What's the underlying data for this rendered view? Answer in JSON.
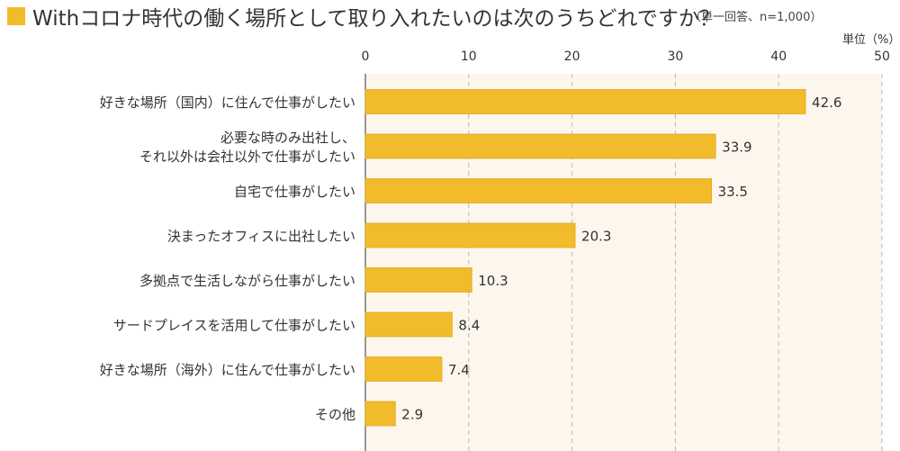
{
  "chart_data": {
    "type": "bar",
    "orientation": "horizontal",
    "title": "Withコロナ時代の働く場所として取り入れたいのは次のうちどれですか？",
    "subtitle": "（単一回答、n=1,000）",
    "unit_label": "単位（%）",
    "categories": [
      [
        "好きな場所（国内）に住んで仕事がしたい"
      ],
      [
        "必要な時のみ出社し、",
        "それ以外は会社以外で仕事がしたい"
      ],
      [
        "自宅で仕事がしたい"
      ],
      [
        "決まったオフィスに出社したい"
      ],
      [
        "多拠点で生活しながら仕事がしたい"
      ],
      [
        "サードプレイスを活用して仕事がしたい"
      ],
      [
        "好きな場所（海外）に住んで仕事がしたい"
      ],
      [
        "その他"
      ]
    ],
    "values": [
      42.6,
      33.9,
      33.5,
      20.3,
      10.3,
      8.4,
      7.4,
      2.9
    ],
    "value_labels": [
      "42.6",
      "33.9",
      "33.5",
      "20.3",
      "10.3",
      "8.4",
      "7.4",
      "2.9"
    ],
    "xlim": [
      0,
      50
    ],
    "ticks": [
      0,
      10,
      20,
      30,
      40,
      50
    ],
    "tick_labels": [
      "0",
      "10",
      "20",
      "30",
      "40",
      "50"
    ],
    "grid": true,
    "colors": {
      "bar": "#f2bb2b",
      "bar_edge": "#e0a91c",
      "plot_background": "#fdf6ed",
      "grid": "#bbbbbb",
      "accent_square": "#f2bb2b"
    }
  }
}
